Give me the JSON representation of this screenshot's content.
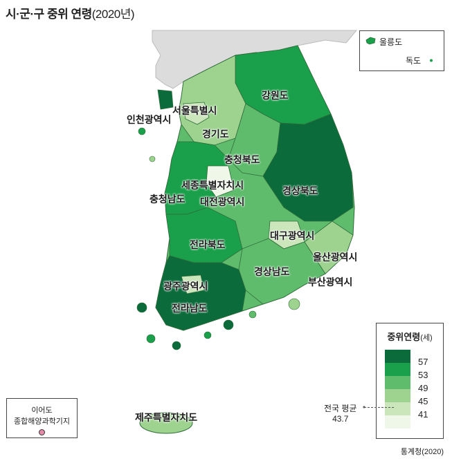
{
  "title": "시·군·구 중위 연령",
  "year": "(2020년)",
  "labels": {
    "gangwon": "강원도",
    "seoul": "서울특별시",
    "incheon": "인천광역시",
    "gyeonggi": "경기도",
    "chungbuk": "충청북도",
    "sejong": "세종특별자치시",
    "chungnam": "충청남도",
    "daejeon": "대전광역시",
    "gyeongbuk": "경상북도",
    "daegu": "대구광역시",
    "ulsan": "울산광역시",
    "jeonbuk": "전라북도",
    "gyeongnam": "경상남도",
    "busan": "부산광역시",
    "gwangju": "광주광역시",
    "jeonnam": "전라남도",
    "jeju": "제주특별자치도"
  },
  "inset": {
    "ulleungdo": "울릉도",
    "dokdo": "독도"
  },
  "legend": {
    "title": "중위연령",
    "unit": "(세)",
    "ticks": [
      "57",
      "53",
      "49",
      "45",
      "41"
    ],
    "colors": [
      "#0b6b3a",
      "#1aa04a",
      "#5ebc6c",
      "#9dd38f",
      "#cbe6bb",
      "#eef7e8"
    ]
  },
  "national_average": {
    "label": "전국 평균",
    "value": "43.7"
  },
  "ieodo": {
    "name": "이어도",
    "station": "종합해양과학기지"
  },
  "source": "통계청(2020)"
}
